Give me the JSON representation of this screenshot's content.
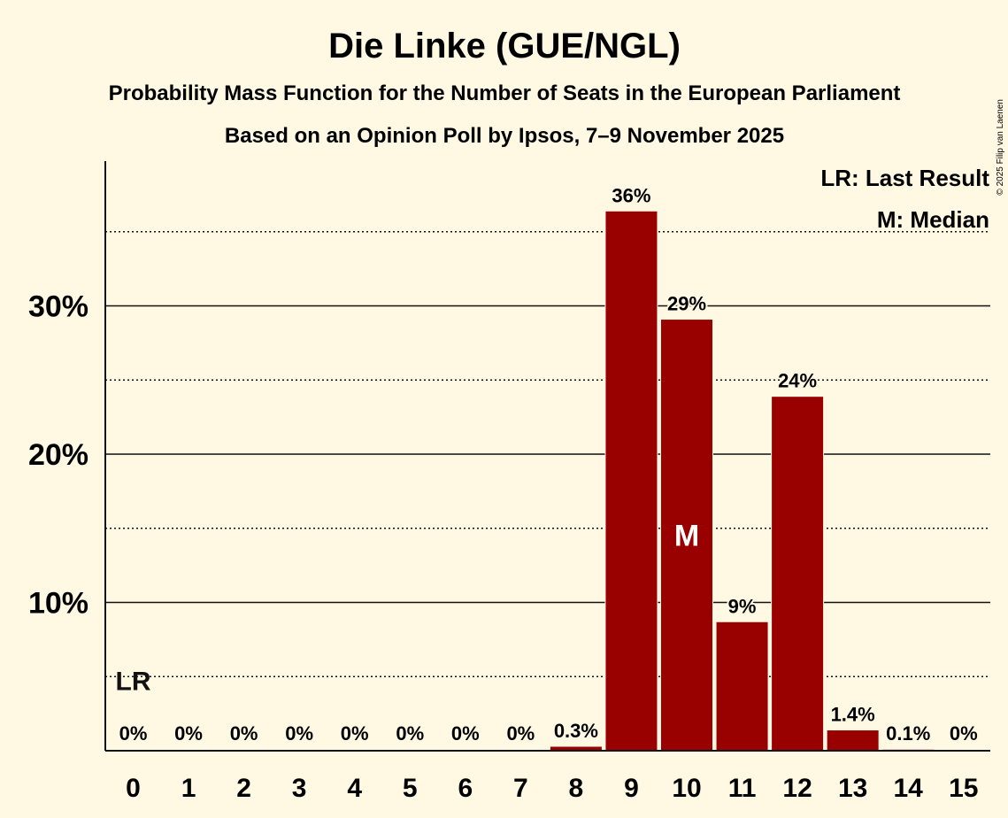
{
  "copyright": "© 2025 Filip van Laenen",
  "colors": {
    "bar": "#990000",
    "background": "#FFF8E3",
    "text": "#111111",
    "median_label": "#FFFFFF"
  },
  "legend": {
    "last_result": "LR: Last Result",
    "median": "M: Median",
    "position": "top-right"
  },
  "chart_data": {
    "type": "bar",
    "title": "Die Linke (GUE/NGL)",
    "subtitle": "Probability Mass Function for the Number of Seats in the European Parliament",
    "subtitle2": "Based on an Opinion Poll by Ipsos, 7–9 November 2025",
    "xlabel": "",
    "ylabel": "",
    "categories": [
      "0",
      "1",
      "2",
      "3",
      "4",
      "5",
      "6",
      "7",
      "8",
      "9",
      "10",
      "11",
      "12",
      "13",
      "14",
      "15"
    ],
    "values": [
      0,
      0,
      0,
      0,
      0,
      0,
      0,
      0,
      0.3,
      36.4,
      29.1,
      8.7,
      23.9,
      1.4,
      0.1,
      0
    ],
    "value_labels": [
      "0%",
      "0%",
      "0%",
      "0%",
      "0%",
      "0%",
      "0%",
      "0%",
      "0.3%",
      "36%",
      "29%",
      "9%",
      "24%",
      "1.4%",
      "0.1%",
      "0%"
    ],
    "ylim": [
      0,
      40
    ],
    "yticks": [
      10,
      20,
      30
    ],
    "ytick_labels": [
      "10%",
      "20%",
      "30%"
    ],
    "dotted_gridlines": [
      5,
      15,
      25,
      35
    ],
    "last_result": {
      "category": "0",
      "label": "LR"
    },
    "median": {
      "category": "10",
      "label": "M"
    }
  }
}
